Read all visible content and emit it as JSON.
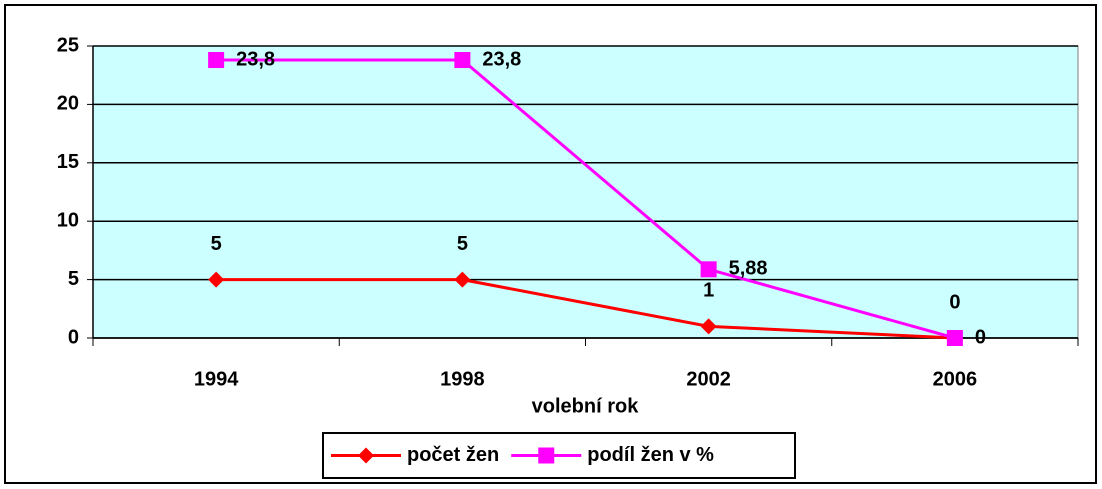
{
  "chart_data": {
    "type": "line",
    "categories": [
      "1994",
      "1998",
      "2002",
      "2006"
    ],
    "x_label": "volební rok",
    "series": [
      {
        "name": "počet žen",
        "color": "#ff0000",
        "marker": "diamond",
        "values": [
          5,
          5,
          1,
          0
        ]
      },
      {
        "name": "podíl žen v %",
        "color": "#ff00ff",
        "marker": "square",
        "values": [
          23.8,
          23.8,
          5.88,
          0
        ],
        "value_labels": [
          "23,8",
          "23,8",
          "5,88",
          "0"
        ]
      }
    ],
    "ylim": [
      0,
      25
    ],
    "yticks": [
      0,
      5,
      10,
      15,
      20,
      25
    ],
    "grid": true,
    "legend": "bottom",
    "plot_background": "#ccffff"
  }
}
